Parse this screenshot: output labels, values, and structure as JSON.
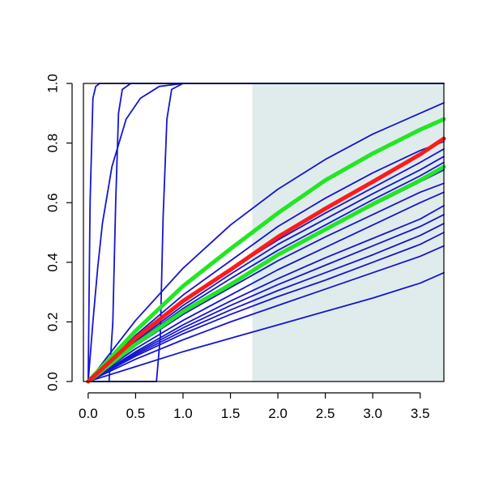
{
  "chart_data": {
    "type": "line",
    "title": "",
    "xlabel": "",
    "ylabel": "",
    "xlim": [
      -0.05,
      3.75
    ],
    "ylim": [
      0,
      1
    ],
    "x_ticks": [
      0.0,
      0.5,
      1.0,
      1.5,
      2.0,
      2.5,
      3.0,
      3.5
    ],
    "x_tick_labels": [
      "0.0",
      "0.5",
      "1.0",
      "1.5",
      "2.0",
      "2.5",
      "3.0",
      "3.5"
    ],
    "y_ticks": [
      0.0,
      0.2,
      0.4,
      0.6,
      0.8,
      1.0
    ],
    "y_tick_labels": [
      "0.0",
      "0.2",
      "0.4",
      "0.6",
      "0.8",
      "1.0"
    ],
    "grid": false,
    "legend": "none",
    "shaded_region": {
      "x_start": 1.73,
      "x_end": 3.75,
      "color": "#e0ecec"
    },
    "colors": {
      "samples": "#1515d0",
      "estimate": "#ff1a1a",
      "bounds": "#22e622",
      "shade": "#e0ecec"
    },
    "series": [
      {
        "role": "estimate",
        "color": "#ff1a1a",
        "x": [
          0,
          0.5,
          1.0,
          1.5,
          2.0,
          2.5,
          3.0,
          3.5,
          3.75
        ],
        "y": [
          0,
          0.145,
          0.27,
          0.375,
          0.485,
          0.58,
          0.67,
          0.762,
          0.815
        ]
      },
      {
        "role": "upper-bound",
        "color": "#22e622",
        "x": [
          0,
          0.5,
          1.0,
          1.5,
          2.0,
          2.5,
          3.0,
          3.5,
          3.75
        ],
        "y": [
          0,
          0.17,
          0.32,
          0.445,
          0.565,
          0.675,
          0.765,
          0.845,
          0.88
        ]
      },
      {
        "role": "lower-bound",
        "color": "#22e622",
        "x": [
          0,
          0.5,
          1.0,
          1.5,
          2.0,
          2.5,
          3.0,
          3.5,
          3.75
        ],
        "y": [
          0,
          0.125,
          0.235,
          0.325,
          0.425,
          0.51,
          0.595,
          0.675,
          0.72
        ]
      },
      {
        "role": "sample",
        "color": "#1515d0",
        "x": [
          0,
          0.5,
          1.0,
          1.5,
          2.0,
          2.5,
          3.0,
          3.5,
          3.75
        ],
        "y": [
          0,
          0.205,
          0.38,
          0.525,
          0.645,
          0.745,
          0.83,
          0.9,
          0.935
        ]
      },
      {
        "role": "sample",
        "color": "#1515d0",
        "x": [
          0,
          0.5,
          1.0,
          1.5,
          2.0,
          2.5,
          3.0,
          3.5,
          3.75
        ],
        "y": [
          0,
          0.155,
          0.29,
          0.405,
          0.52,
          0.615,
          0.7,
          0.775,
          0.805
        ]
      },
      {
        "role": "sample",
        "color": "#1515d0",
        "x": [
          0,
          0.5,
          1.0,
          1.5,
          2.0,
          2.5,
          3.0,
          3.5,
          3.75
        ],
        "y": [
          0,
          0.14,
          0.265,
          0.375,
          0.475,
          0.565,
          0.65,
          0.735,
          0.78
        ]
      },
      {
        "role": "sample",
        "color": "#1515d0",
        "x": [
          0,
          0.5,
          1.0,
          1.5,
          2.0,
          2.5,
          3.0,
          3.5,
          3.75
        ],
        "y": [
          0,
          0.135,
          0.255,
          0.36,
          0.46,
          0.545,
          0.63,
          0.71,
          0.755
        ]
      },
      {
        "role": "sample",
        "color": "#1515d0",
        "x": [
          0,
          0.5,
          1.0,
          1.5,
          2.0,
          2.5,
          3.0,
          3.5,
          3.75
        ],
        "y": [
          0,
          0.13,
          0.245,
          0.345,
          0.44,
          0.525,
          0.61,
          0.69,
          0.735
        ]
      },
      {
        "role": "sample",
        "color": "#1515d0",
        "x": [
          0,
          0.5,
          1.0,
          1.5,
          2.0,
          2.5,
          3.0,
          3.5,
          3.75
        ],
        "y": [
          0,
          0.125,
          0.235,
          0.33,
          0.425,
          0.51,
          0.59,
          0.67,
          0.71
        ]
      },
      {
        "role": "sample",
        "color": "#1515d0",
        "x": [
          0,
          0.5,
          1.0,
          1.5,
          2.0,
          2.5,
          3.0,
          3.5,
          3.75
        ],
        "y": [
          0,
          0.12,
          0.225,
          0.315,
          0.405,
          0.485,
          0.56,
          0.635,
          0.665
        ]
      },
      {
        "role": "sample",
        "color": "#1515d0",
        "x": [
          0,
          0.5,
          1.0,
          1.5,
          2.0,
          2.5,
          3.0,
          3.5,
          3.75
        ],
        "y": [
          0,
          0.11,
          0.205,
          0.29,
          0.375,
          0.45,
          0.525,
          0.6,
          0.635
        ]
      },
      {
        "role": "sample",
        "color": "#1515d0",
        "x": [
          0,
          0.5,
          1.0,
          1.5,
          2.0,
          2.5,
          3.0,
          3.5,
          3.75
        ],
        "y": [
          0,
          0.1,
          0.19,
          0.27,
          0.345,
          0.415,
          0.48,
          0.545,
          0.59
        ]
      },
      {
        "role": "sample",
        "color": "#1515d0",
        "x": [
          0,
          0.5,
          1.0,
          1.5,
          2.0,
          2.5,
          3.0,
          3.5,
          3.75
        ],
        "y": [
          0,
          0.095,
          0.18,
          0.255,
          0.325,
          0.39,
          0.455,
          0.52,
          0.56
        ]
      },
      {
        "role": "sample",
        "color": "#1515d0",
        "x": [
          0,
          0.5,
          1.0,
          1.5,
          2.0,
          2.5,
          3.0,
          3.5,
          3.75
        ],
        "y": [
          0,
          0.09,
          0.17,
          0.24,
          0.305,
          0.365,
          0.425,
          0.49,
          0.53
        ]
      },
      {
        "role": "sample",
        "color": "#1515d0",
        "x": [
          0,
          0.5,
          1.0,
          1.5,
          2.0,
          2.5,
          3.0,
          3.5,
          3.75
        ],
        "y": [
          0,
          0.085,
          0.16,
          0.225,
          0.285,
          0.34,
          0.4,
          0.46,
          0.5
        ]
      },
      {
        "role": "sample",
        "color": "#1515d0",
        "x": [
          0,
          0.5,
          1.0,
          1.5,
          2.0,
          2.5,
          3.0,
          3.5,
          3.75
        ],
        "y": [
          0,
          0.075,
          0.14,
          0.2,
          0.255,
          0.31,
          0.365,
          0.42,
          0.455
        ]
      },
      {
        "role": "sample",
        "color": "#1515d0",
        "x": [
          0,
          0.5,
          1.0,
          1.5,
          2.0,
          2.5,
          3.0,
          3.5,
          3.75
        ],
        "y": [
          0,
          0.05,
          0.1,
          0.145,
          0.19,
          0.235,
          0.28,
          0.33,
          0.365
        ]
      },
      {
        "role": "sample",
        "color": "#1515d0",
        "x": [
          0,
          0.02,
          0.05,
          0.08,
          0.12,
          0.3,
          1.0,
          3.75
        ],
        "y": [
          0,
          0.6,
          0.95,
          0.99,
          1.0,
          1.0,
          1.0,
          1.0
        ]
      },
      {
        "role": "sample",
        "color": "#1515d0",
        "x": [
          0,
          0.05,
          0.1,
          0.15,
          0.25,
          0.4,
          0.55,
          0.75,
          1.0,
          3.75
        ],
        "y": [
          0,
          0.2,
          0.38,
          0.53,
          0.72,
          0.88,
          0.95,
          0.99,
          1.0,
          1.0
        ]
      },
      {
        "role": "sample",
        "color": "#1515d0",
        "x": [
          0,
          0.22,
          0.26,
          0.29,
          0.32,
          0.36,
          0.45,
          3.75
        ],
        "y": [
          0,
          0.0,
          0.2,
          0.6,
          0.9,
          0.98,
          1.0,
          1.0
        ]
      },
      {
        "role": "sample",
        "color": "#1515d0",
        "x": [
          0,
          0.72,
          0.76,
          0.79,
          0.83,
          0.88,
          1.0,
          3.75
        ],
        "y": [
          0,
          0.0,
          0.15,
          0.55,
          0.88,
          0.98,
          1.0,
          1.0
        ]
      }
    ]
  }
}
